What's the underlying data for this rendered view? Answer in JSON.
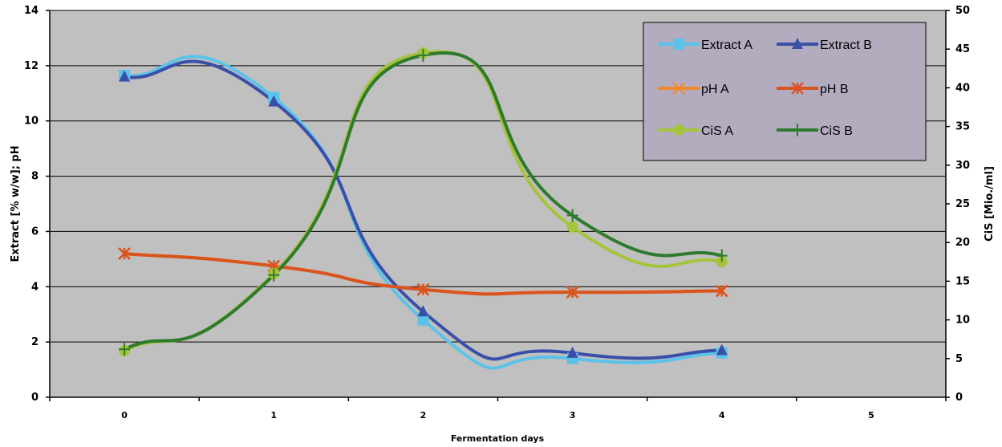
{
  "chart_data": {
    "type": "line",
    "xlabel": "Fermentation days",
    "ylabel": "Extract [% w/w]; pH",
    "y2label": "CiS [Mio./ml]",
    "x_ticks": [
      0,
      1,
      2,
      3,
      4,
      5
    ],
    "xlim": [
      -0.5,
      5.5
    ],
    "ylim": [
      0,
      14
    ],
    "y_ticks": [
      0,
      2,
      4,
      6,
      8,
      10,
      12,
      14
    ],
    "y2lim": [
      0,
      50
    ],
    "y2_ticks": [
      0,
      5,
      10,
      15,
      20,
      25,
      30,
      35,
      40,
      45,
      50
    ],
    "grid": "horizontal",
    "plot_background": "#c0c0c0",
    "legend_position": "top-right",
    "legend_background": "#b3acbf",
    "series": [
      {
        "name": "Extract A",
        "axis": "left",
        "color": "#5bc3ea",
        "marker": "square",
        "x": [
          0,
          1,
          2,
          3,
          4
        ],
        "y": [
          11.65,
          10.85,
          2.8,
          1.4,
          1.6
        ]
      },
      {
        "name": "Extract B",
        "axis": "left",
        "color": "#3a4fa8",
        "marker": "triangle",
        "x": [
          0,
          1,
          2,
          3,
          4
        ],
        "y": [
          11.6,
          10.7,
          3.1,
          1.6,
          1.7
        ]
      },
      {
        "name": "pH A",
        "axis": "left",
        "color": "#f08a30",
        "marker": "x",
        "x": [
          0,
          1,
          2,
          3,
          4
        ],
        "y": [
          5.2,
          4.75,
          3.9,
          3.8,
          3.85
        ]
      },
      {
        "name": "pH B",
        "axis": "left",
        "color": "#d9541e",
        "marker": "asterisk",
        "x": [
          0,
          1,
          2,
          3,
          4
        ],
        "y": [
          5.2,
          4.75,
          3.9,
          3.8,
          3.85
        ]
      },
      {
        "name": "CiS A",
        "axis": "right",
        "color": "#a5c43a",
        "marker": "circle",
        "x": [
          0,
          1,
          2,
          3,
          4
        ],
        "y": [
          6,
          16,
          44.5,
          22,
          17.5
        ]
      },
      {
        "name": "CiS B",
        "axis": "right",
        "color": "#2e7a2e",
        "marker": "plus",
        "x": [
          0,
          1,
          2,
          3,
          4
        ],
        "y": [
          6.2,
          15.8,
          44.2,
          23.5,
          18.3
        ]
      }
    ]
  }
}
